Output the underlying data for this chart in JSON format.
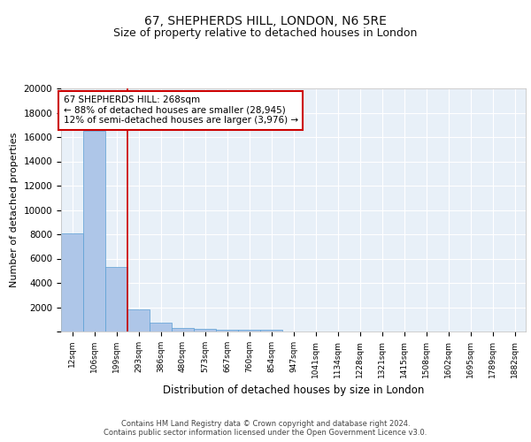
{
  "title": "67, SHEPHERDS HILL, LONDON, N6 5RE",
  "subtitle": "Size of property relative to detached houses in London",
  "xlabel": "Distribution of detached houses by size in London",
  "ylabel": "Number of detached properties",
  "categories": [
    "12sqm",
    "106sqm",
    "199sqm",
    "293sqm",
    "386sqm",
    "480sqm",
    "573sqm",
    "667sqm",
    "760sqm",
    "854sqm",
    "947sqm",
    "1041sqm",
    "1134sqm",
    "1228sqm",
    "1321sqm",
    "1415sqm",
    "1508sqm",
    "1602sqm",
    "1695sqm",
    "1789sqm",
    "1882sqm"
  ],
  "values": [
    8100,
    16500,
    5300,
    1850,
    700,
    300,
    220,
    180,
    150,
    130,
    0,
    0,
    0,
    0,
    0,
    0,
    0,
    0,
    0,
    0,
    0
  ],
  "bar_color": "#aec6e8",
  "bar_edge_color": "#5a9fd4",
  "background_color": "#e8f0f8",
  "grid_color": "#ffffff",
  "red_line_x": 2.5,
  "annotation_text": "67 SHEPHERDS HILL: 268sqm\n← 88% of detached houses are smaller (28,945)\n12% of semi-detached houses are larger (3,976) →",
  "annotation_box_color": "#ffffff",
  "annotation_box_edge": "#cc0000",
  "red_line_color": "#cc0000",
  "ylim": [
    0,
    20000
  ],
  "yticks": [
    0,
    2000,
    4000,
    6000,
    8000,
    10000,
    12000,
    14000,
    16000,
    18000,
    20000
  ],
  "footer": "Contains HM Land Registry data © Crown copyright and database right 2024.\nContains public sector information licensed under the Open Government Licence v3.0.",
  "title_fontsize": 10,
  "subtitle_fontsize": 9
}
